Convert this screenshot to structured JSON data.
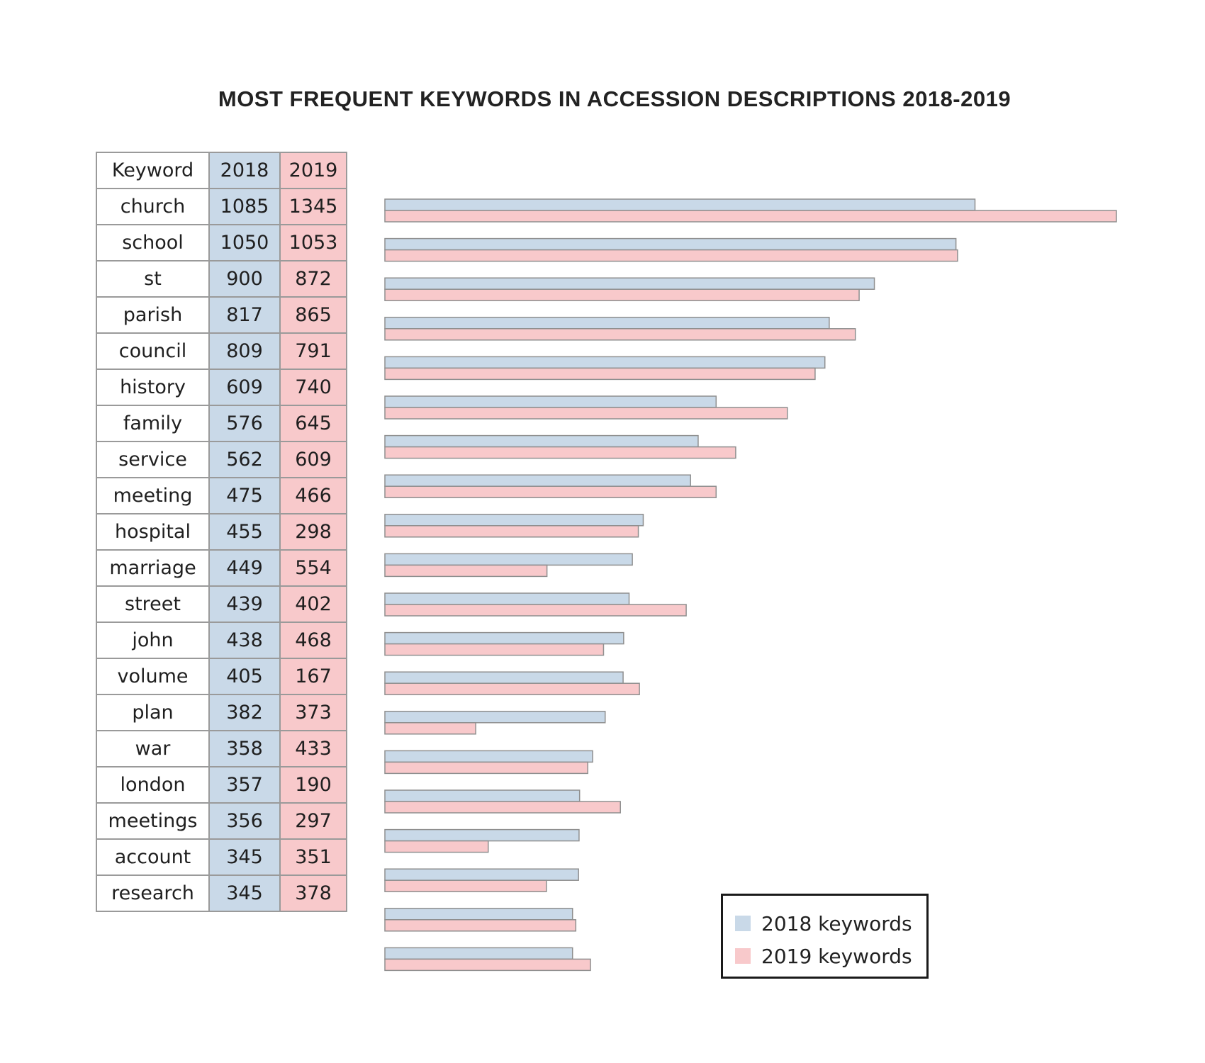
{
  "colors": {
    "y2018": "#c9d9e8",
    "y2019": "#f8c9cb",
    "bar_stroke": "#8f8f8f"
  },
  "chart_data": {
    "type": "bar",
    "orientation": "horizontal",
    "title": "MOST FREQUENT KEYWORDS IN ACCESSION DESCRIPTIONS 2018-2019",
    "table_headers": [
      "Keyword",
      "2018",
      "2019"
    ],
    "categories": [
      "church",
      "school",
      "st",
      "parish",
      "council",
      "history",
      "family",
      "service",
      "meeting",
      "hospital",
      "marriage",
      "street",
      "john",
      "volume",
      "plan",
      "war",
      "london",
      "meetings",
      "account",
      "research"
    ],
    "series": [
      {
        "name": "2018 keywords",
        "values": [
          1085,
          1050,
          900,
          817,
          809,
          609,
          576,
          562,
          475,
          455,
          449,
          439,
          438,
          405,
          382,
          358,
          357,
          356,
          345,
          345
        ]
      },
      {
        "name": "2019 keywords",
        "values": [
          1345,
          1053,
          872,
          865,
          791,
          740,
          645,
          609,
          466,
          298,
          554,
          402,
          468,
          167,
          373,
          433,
          190,
          297,
          351,
          378
        ]
      }
    ],
    "xlim": [
      0,
      1345
    ],
    "grid": false,
    "legend_position": "bottom-right"
  }
}
